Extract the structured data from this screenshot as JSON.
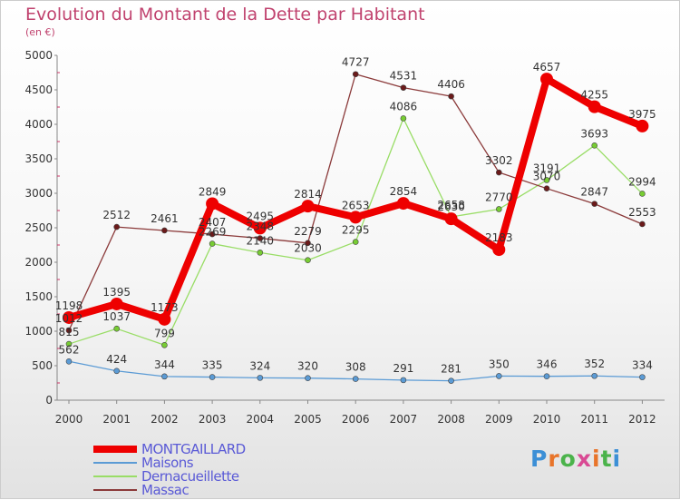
{
  "title": "Evolution du Montant de la Dette par Habitant",
  "subtitle": "(en €)",
  "logo": {
    "text": "Proxiti",
    "letter_colors": [
      "#3c8fd6",
      "#e8742a",
      "#4bb34b",
      "#d94a94",
      "#e8742a",
      "#4bb34b",
      "#3c8fd6"
    ]
  },
  "chart_data": {
    "type": "line",
    "title": "Evolution du Montant de la Dette par Habitant",
    "subtitle": "(en €)",
    "xlabel": "",
    "ylabel": "",
    "ylim": [
      0,
      5000
    ],
    "yticks": [
      0,
      500,
      1000,
      1500,
      2000,
      2500,
      3000,
      3500,
      4000,
      4500,
      5000
    ],
    "categories": [
      "2000",
      "2001",
      "2002",
      "2003",
      "2004",
      "2005",
      "2006",
      "2007",
      "2008",
      "2009",
      "2010",
      "2011",
      "2012"
    ],
    "grid": false,
    "legend_position": "bottom-left",
    "series": [
      {
        "name": "Maisons",
        "color": "#5b9bd5",
        "dot": "#5b9bd5",
        "values": [
          562,
          424,
          344,
          335,
          324,
          320,
          308,
          291,
          281,
          350,
          346,
          352,
          334
        ]
      },
      {
        "name": "Dernacueillette",
        "color": "#99dd66",
        "dot": "#77cc33",
        "values": [
          815,
          1037,
          799,
          2269,
          2140,
          2030,
          2295,
          4086,
          2658,
          2770,
          3191,
          3693,
          2994
        ]
      },
      {
        "name": "Massac",
        "color": "#8b3a3a",
        "dot": "#6b1a1a",
        "values": [
          1012,
          2512,
          2461,
          2407,
          2348,
          2279,
          4727,
          4531,
          4406,
          3302,
          3070,
          2847,
          2553
        ]
      },
      {
        "name": "MONTGAILLARD",
        "color": "#ee0000",
        "dot": "#ee0000",
        "values": [
          1198,
          1395,
          1173,
          2849,
          2495,
          2814,
          2653,
          2854,
          2630,
          2183,
          4657,
          4255,
          3975
        ]
      }
    ],
    "legend_order": [
      "MONTGAILLARD",
      "Maisons",
      "Dernacueillette",
      "Massac"
    ]
  }
}
